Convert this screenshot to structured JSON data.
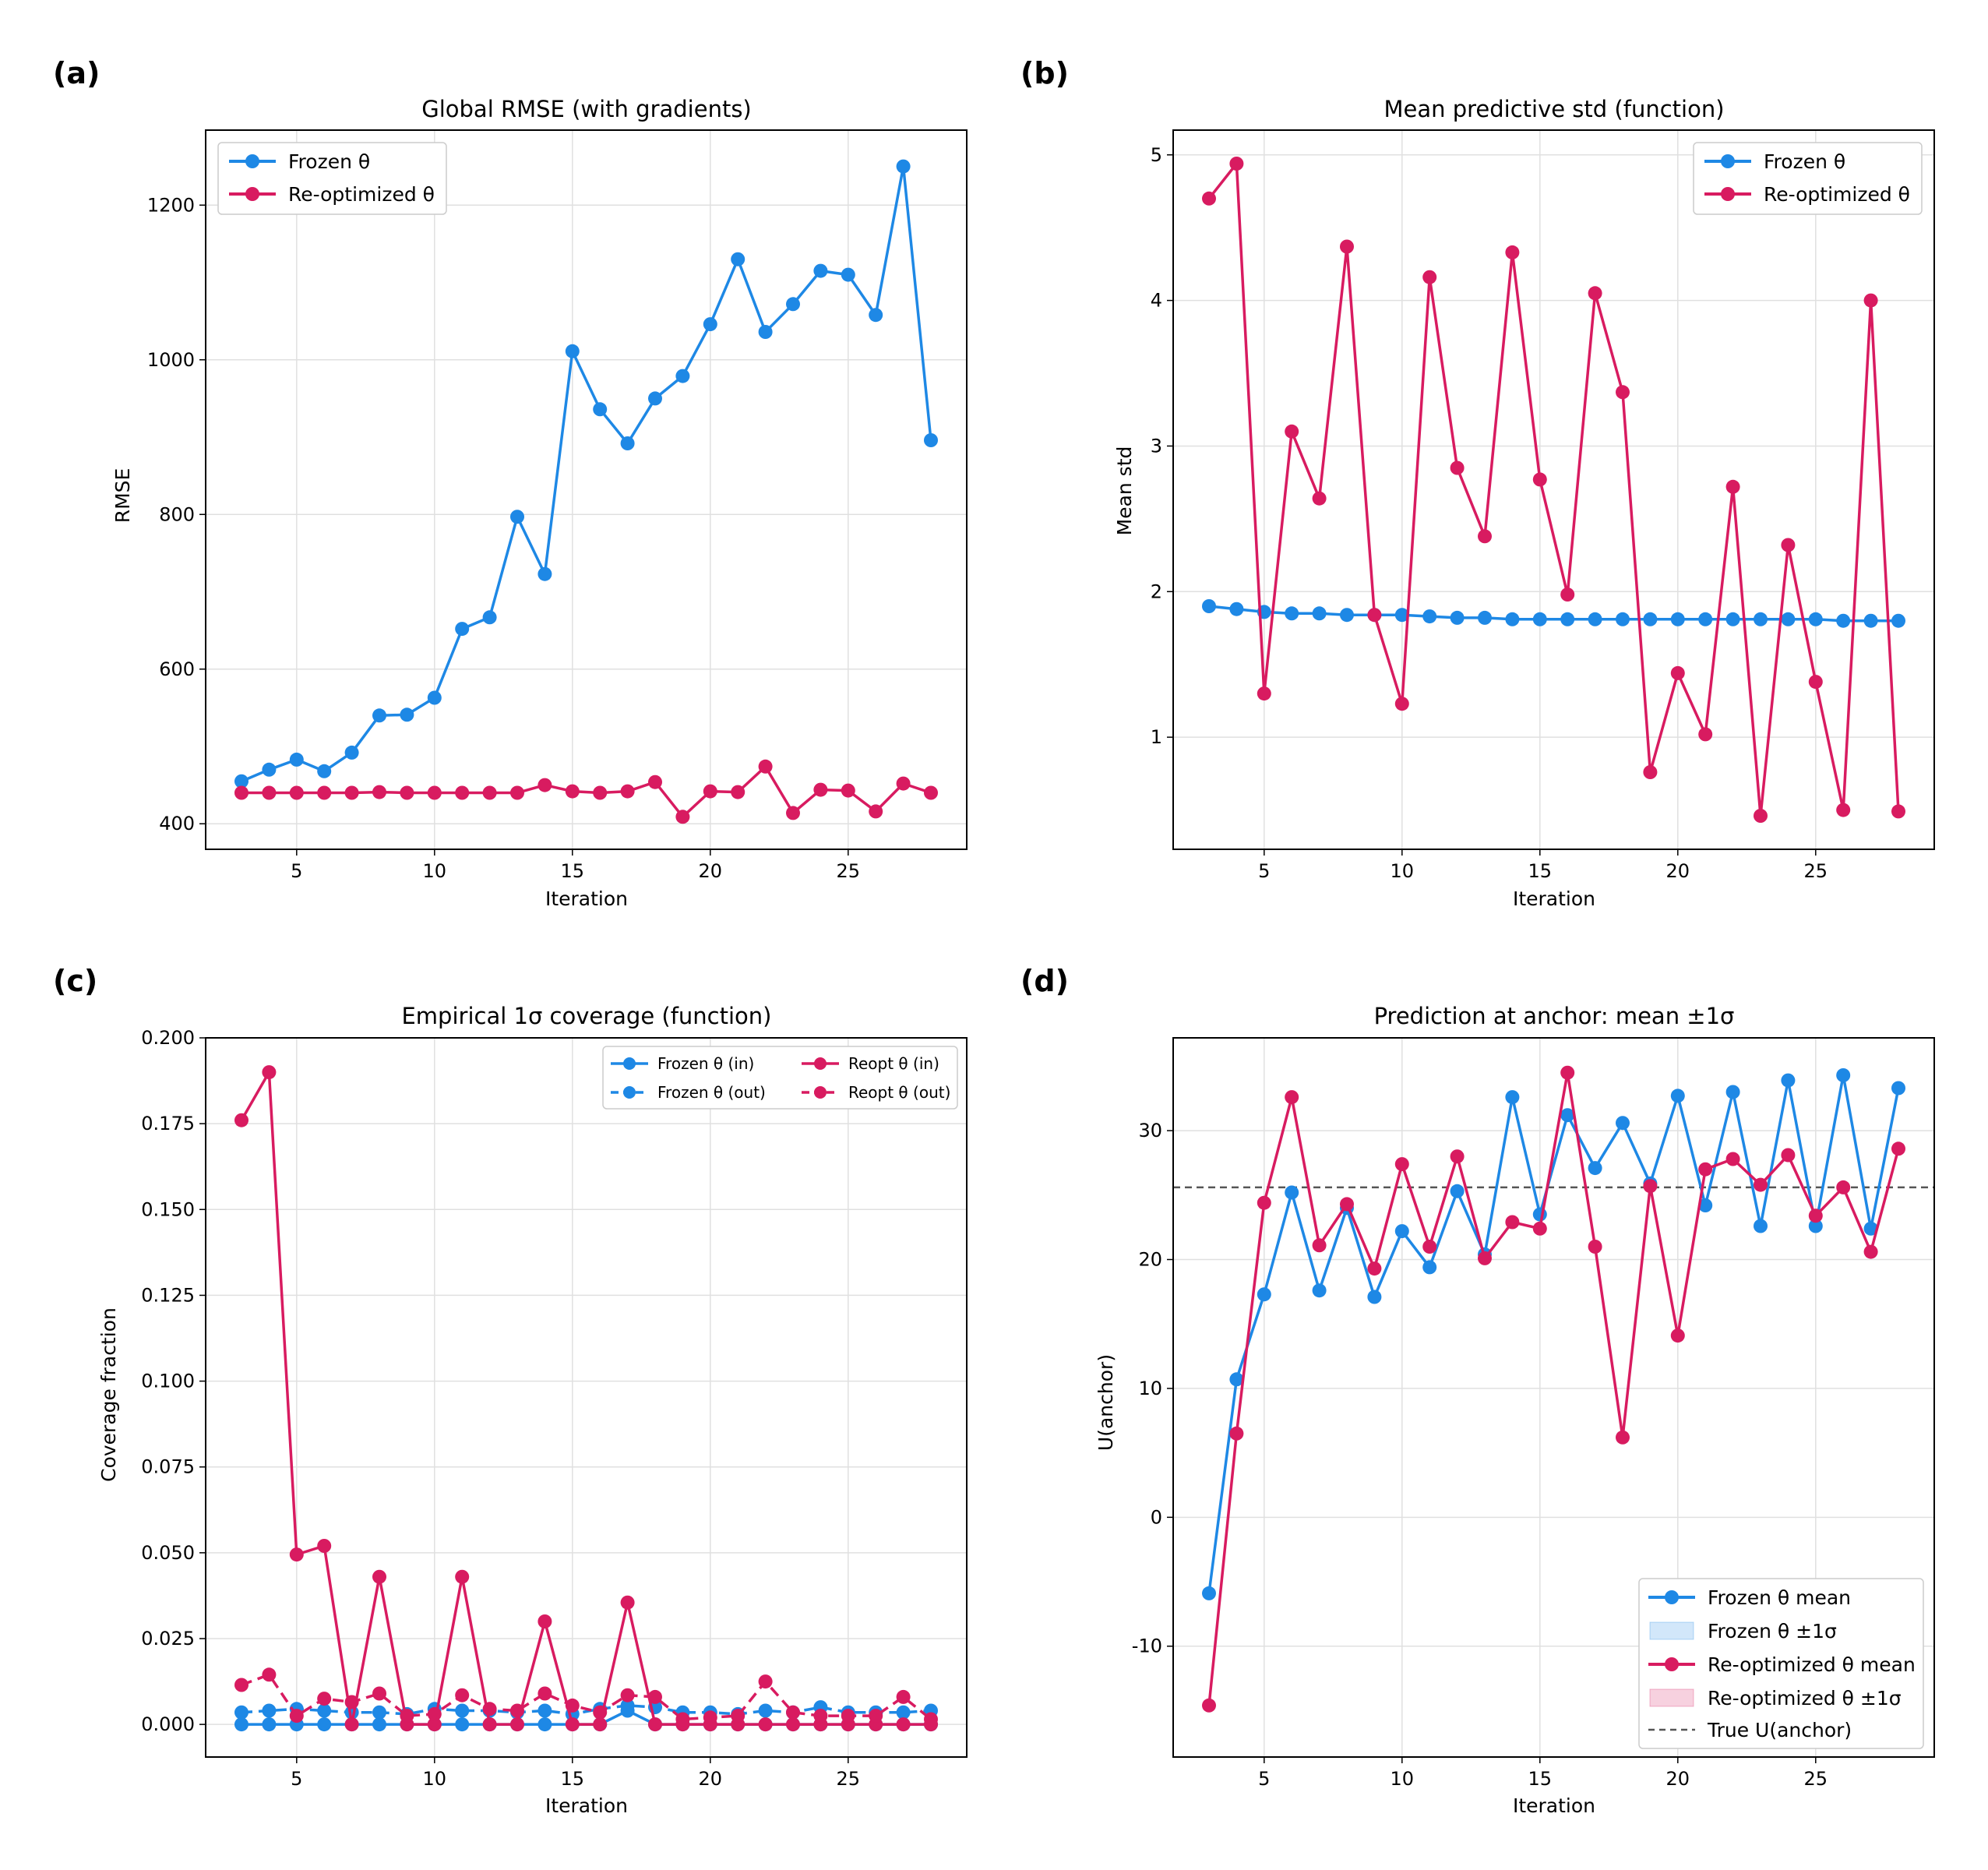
{
  "colors": {
    "frozen": "#1e88e5",
    "reopt": "#d81b60",
    "true_line": "#555555",
    "grid": "#e0e0e0"
  },
  "chart_data": [
    {
      "panel": "(a)",
      "type": "line",
      "title": "Global RMSE (with gradients)",
      "xlabel": "Iteration",
      "ylabel": "RMSE",
      "xlim": [
        1.7,
        29.3
      ],
      "ylim": [
        367,
        1297
      ],
      "xticks": [
        5,
        10,
        15,
        20,
        25
      ],
      "yticks": [
        400,
        600,
        800,
        1000,
        1200
      ],
      "legend": "top-left",
      "x": [
        3,
        4,
        5,
        6,
        7,
        8,
        9,
        10,
        11,
        12,
        13,
        14,
        15,
        16,
        17,
        18,
        19,
        20,
        21,
        22,
        23,
        24,
        25,
        26,
        27,
        28
      ],
      "series": [
        {
          "name": "Frozen θ",
          "color_key": "frozen",
          "dashed": false,
          "values": [
            455,
            470,
            483,
            468,
            492,
            540,
            541,
            563,
            652,
            667,
            797,
            723,
            1011,
            936,
            892,
            950,
            979,
            1046,
            1130,
            1036,
            1072,
            1115,
            1110,
            1058,
            1250,
            896
          ]
        },
        {
          "name": "Re-optimized θ",
          "color_key": "reopt",
          "dashed": false,
          "values": [
            440,
            440,
            440,
            440,
            440,
            441,
            440,
            440,
            440,
            440,
            440,
            450,
            442,
            440,
            442,
            454,
            409,
            442,
            441,
            474,
            414,
            444,
            443,
            416,
            452,
            440
          ]
        }
      ]
    },
    {
      "panel": "(b)",
      "type": "line",
      "title": "Mean predictive std (function)",
      "xlabel": "Iteration",
      "ylabel": "Mean std",
      "xlim": [
        1.7,
        29.3
      ],
      "ylim": [
        0.23,
        5.17
      ],
      "xticks": [
        5,
        10,
        15,
        20,
        25
      ],
      "yticks": [
        1,
        2,
        3,
        4,
        5
      ],
      "legend": "top-right",
      "x": [
        3,
        4,
        5,
        6,
        7,
        8,
        9,
        10,
        11,
        12,
        13,
        14,
        15,
        16,
        17,
        18,
        19,
        20,
        21,
        22,
        23,
        24,
        25,
        26,
        27,
        28
      ],
      "series": [
        {
          "name": "Frozen θ",
          "color_key": "frozen",
          "dashed": false,
          "values": [
            1.9,
            1.88,
            1.86,
            1.85,
            1.85,
            1.84,
            1.84,
            1.84,
            1.83,
            1.82,
            1.82,
            1.81,
            1.81,
            1.81,
            1.81,
            1.81,
            1.81,
            1.81,
            1.81,
            1.81,
            1.81,
            1.81,
            1.81,
            1.8,
            1.8,
            1.8
          ]
        },
        {
          "name": "Re-optimized θ",
          "color_key": "reopt",
          "dashed": false,
          "values": [
            4.7,
            4.94,
            1.3,
            3.1,
            2.64,
            4.37,
            1.84,
            1.23,
            4.16,
            2.85,
            2.38,
            4.33,
            2.77,
            1.98,
            4.05,
            3.37,
            0.76,
            1.44,
            1.02,
            2.72,
            0.46,
            2.32,
            1.38,
            0.5,
            4.0,
            0.49
          ]
        }
      ]
    },
    {
      "panel": "(c)",
      "type": "line",
      "title": "Empirical 1σ coverage (function)",
      "xlabel": "Iteration",
      "ylabel": "Coverage fraction",
      "xlim": [
        1.7,
        29.3
      ],
      "ylim": [
        -0.0095,
        0.2
      ],
      "xticks": [
        5,
        10,
        15,
        20,
        25
      ],
      "yticks": [
        0.0,
        0.025,
        0.05,
        0.075,
        0.1,
        0.125,
        0.15,
        0.175,
        0.2
      ],
      "ytick_labels": [
        "0.000",
        "0.025",
        "0.050",
        "0.075",
        "0.100",
        "0.125",
        "0.150",
        "0.175",
        "0.200"
      ],
      "legend": "top-right",
      "x": [
        3,
        4,
        5,
        6,
        7,
        8,
        9,
        10,
        11,
        12,
        13,
        14,
        15,
        16,
        17,
        18,
        19,
        20,
        21,
        22,
        23,
        24,
        25,
        26,
        27,
        28
      ],
      "series": [
        {
          "name": "Frozen θ (in)",
          "color_key": "frozen",
          "dashed": false,
          "values": [
            0,
            0,
            0,
            0,
            0,
            0,
            0,
            0,
            0,
            0,
            0,
            0,
            0,
            0,
            0.004,
            0,
            0,
            0,
            0,
            0,
            0,
            0,
            0,
            0,
            0,
            0
          ]
        },
        {
          "name": "Frozen θ (out)",
          "color_key": "frozen",
          "dashed": true,
          "values": [
            0.0035,
            0.004,
            0.0045,
            0.004,
            0.0035,
            0.0035,
            0.003,
            0.0045,
            0.004,
            0.004,
            0.0035,
            0.004,
            0.003,
            0.0045,
            0.0055,
            0.005,
            0.0035,
            0.0035,
            0.003,
            0.004,
            0.0035,
            0.005,
            0.0035,
            0.0035,
            0.0035,
            0.004
          ]
        },
        {
          "name": "Reopt θ (in)",
          "color_key": "reopt",
          "dashed": false,
          "values": [
            0.176,
            0.19,
            0.0495,
            0.052,
            0,
            0.043,
            0,
            0,
            0.043,
            0,
            0,
            0.03,
            0,
            0,
            0.0355,
            0,
            0,
            0,
            0,
            0,
            0,
            0,
            0,
            0,
            0,
            0
          ]
        },
        {
          "name": "Reopt θ (out)",
          "color_key": "reopt",
          "dashed": true,
          "values": [
            0.0115,
            0.0145,
            0.0025,
            0.0075,
            0.0065,
            0.009,
            0.0025,
            0.003,
            0.0085,
            0.0045,
            0.004,
            0.009,
            0.0055,
            0.0035,
            0.0085,
            0.008,
            0.0015,
            0.002,
            0.0025,
            0.0125,
            0.0035,
            0.0025,
            0.0025,
            0.0025,
            0.008,
            0.0015
          ]
        }
      ]
    },
    {
      "panel": "(d)",
      "type": "line",
      "title": "Prediction at anchor: mean ±1σ",
      "xlabel": "Iteration",
      "ylabel": "U(anchor)",
      "xlim": [
        1.7,
        29.3
      ],
      "ylim": [
        -18.6,
        37.2
      ],
      "xticks": [
        5,
        10,
        15,
        20,
        25
      ],
      "yticks": [
        -10,
        0,
        10,
        20,
        30
      ],
      "legend": "bottom-right",
      "true_value": 25.6,
      "x": [
        3,
        4,
        5,
        6,
        7,
        8,
        9,
        10,
        11,
        12,
        13,
        14,
        15,
        16,
        17,
        18,
        19,
        20,
        21,
        22,
        23,
        24,
        25,
        26,
        27,
        28
      ],
      "series": [
        {
          "name": "Frozen θ mean",
          "color_key": "frozen",
          "dashed": false,
          "values": [
            -5.9,
            10.7,
            17.3,
            25.2,
            17.6,
            24.0,
            17.1,
            22.2,
            19.4,
            25.3,
            20.4,
            32.6,
            23.5,
            31.2,
            27.1,
            30.6,
            25.9,
            32.7,
            24.2,
            33.0,
            22.6,
            33.9,
            22.6,
            34.3,
            22.4,
            33.3
          ]
        },
        {
          "name": "Re-optimized θ mean",
          "color_key": "reopt",
          "dashed": false,
          "values": [
            -14.6,
            6.5,
            24.4,
            32.6,
            21.1,
            24.3,
            19.3,
            27.4,
            21.0,
            28.0,
            20.1,
            22.9,
            22.4,
            34.5,
            21.0,
            6.2,
            25.7,
            14.1,
            27.0,
            27.8,
            25.8,
            28.1,
            23.4,
            25.6,
            20.6,
            28.6
          ]
        }
      ],
      "legend_entries": [
        "Frozen θ mean",
        "Frozen θ ±1σ",
        "Re-optimized θ mean",
        "Re-optimized θ ±1σ",
        "True U(anchor)"
      ]
    }
  ]
}
